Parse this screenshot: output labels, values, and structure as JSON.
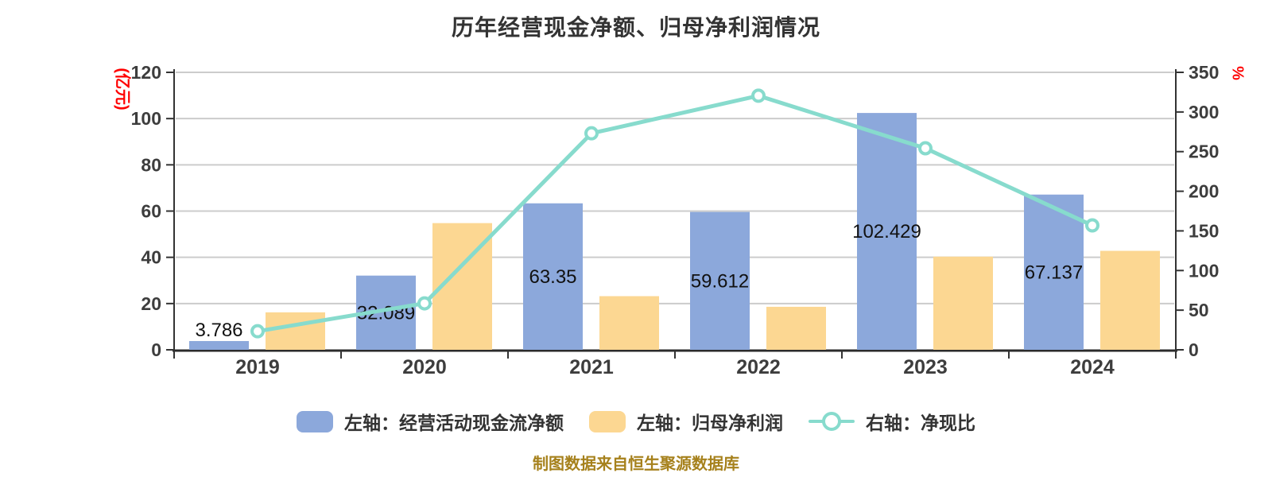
{
  "chart_data": {
    "type": "bar+line",
    "title": "历年经营现金净额、归母净利润情况",
    "categories": [
      "2019",
      "2020",
      "2021",
      "2022",
      "2023",
      "2024"
    ],
    "series": [
      {
        "id": "operating-cashflow",
        "name": "左轴：经营活动现金流净额",
        "type": "bar",
        "axis": "left",
        "color": "#8CA8DB",
        "values": [
          3.786,
          32.089,
          63.35,
          59.612,
          102.429,
          67.137
        ],
        "labels": [
          "3.786",
          "32.089",
          "63.35",
          "59.612",
          "102.429",
          "67.137"
        ]
      },
      {
        "id": "net-profit",
        "name": "左轴：归母净利润",
        "type": "bar",
        "axis": "left",
        "color": "#FCD792",
        "values": [
          16.2,
          54.8,
          23.2,
          18.6,
          40.3,
          42.8
        ],
        "labels": []
      },
      {
        "id": "cash-ratio",
        "name": "右轴：净现比",
        "type": "line",
        "axis": "right",
        "color": "#87DBCD",
        "marker_fill": "#ffffff",
        "values": [
          23.4,
          58.6,
          273.1,
          320.5,
          254.2,
          156.9
        ]
      }
    ],
    "left_axis": {
      "name": "(亿元)",
      "min": 0,
      "max": 120,
      "ticks": [
        0,
        20,
        40,
        60,
        80,
        100,
        120
      ],
      "name_color": "#ff0000"
    },
    "right_axis": {
      "name": "%",
      "min": 0,
      "max": 350,
      "ticks": [
        0,
        50,
        100,
        150,
        200,
        250,
        300,
        350
      ],
      "name_color": "#ff0000"
    },
    "grid": true,
    "legend_position": "bottom",
    "colors": {
      "grid_line": "#CCCCCC",
      "axis_line": "#333333",
      "tick_text": "#3D3D3D",
      "value_label": "#111111",
      "title_text": "#333333",
      "background": "#FFFFFF"
    }
  },
  "footer": {
    "text": "制图数据来自恒生聚源数据库"
  }
}
